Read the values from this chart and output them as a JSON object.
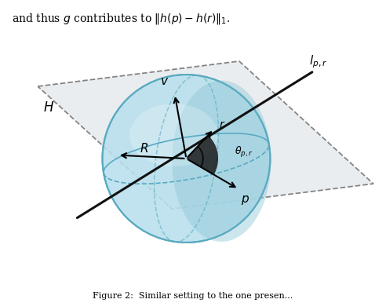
{
  "fig_width": 4.92,
  "fig_height": 3.86,
  "dpi": 100,
  "sphere_color_light": "#b8e0ed",
  "sphere_color_dark": "#7ec8d8",
  "sphere_color_edge": "#5aaac0",
  "sphere_cap_color": "#90c8d8",
  "plane_color": "#e2e6ea",
  "plane_edge_color": "#555555",
  "line_color": "#111111",
  "background_color": "#ffffff",
  "top_text": "and thus $g$ contributes to $\\|h(p)-h(r)\\|_1$.",
  "caption": "Figure 2:  Similar setting to the one presen..."
}
